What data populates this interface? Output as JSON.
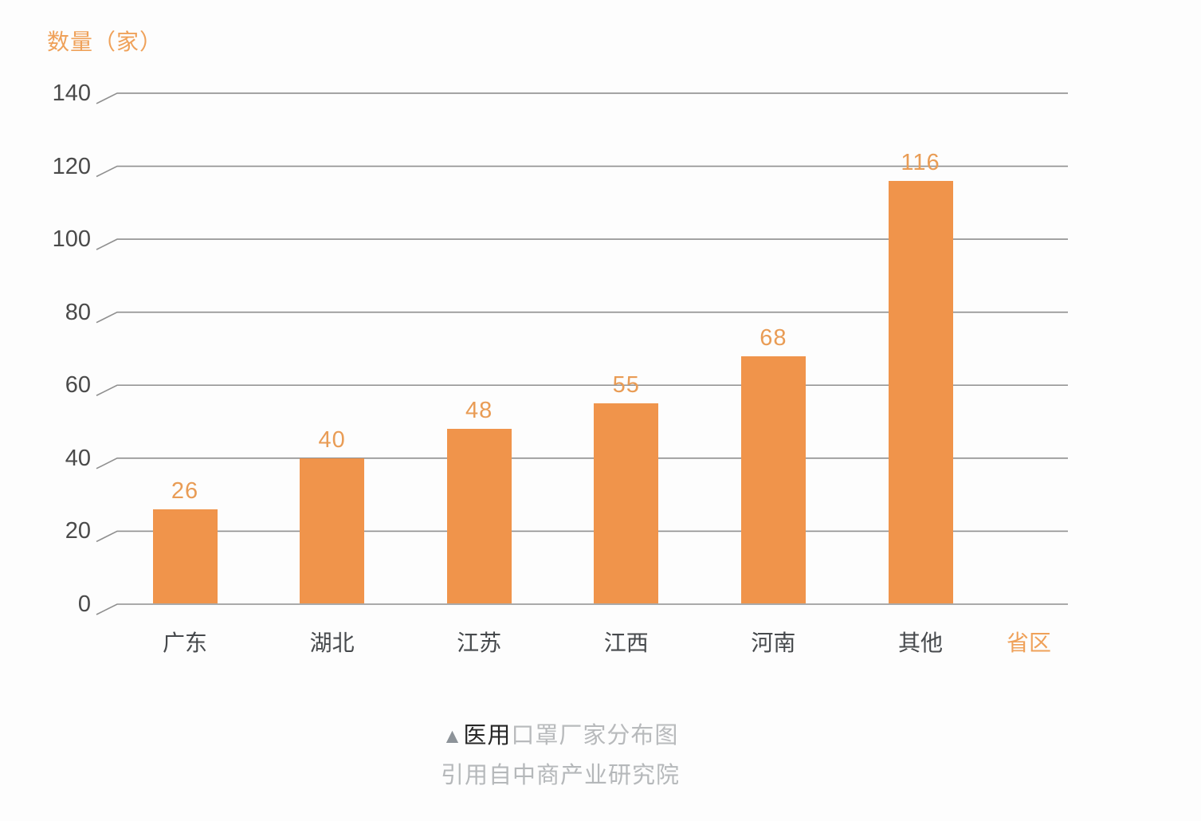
{
  "chart": {
    "y_axis_title": "数量（家）",
    "x_axis_title": "省区"
  },
  "chart_data": {
    "type": "bar",
    "title": "医用口罩厂家分布图",
    "categories": [
      "广东",
      "湖北",
      "江苏",
      "江西",
      "河南",
      "其他"
    ],
    "values": [
      26,
      40,
      48,
      55,
      68,
      116
    ],
    "xlabel": "省区",
    "ylabel": "数量（家）",
    "ylim": [
      0,
      140
    ],
    "yticks": [
      0,
      20,
      40,
      60,
      80,
      100,
      120,
      140
    ],
    "grid": "horizontal",
    "legend": "none",
    "bar_color": "#F0944B",
    "value_label_color": "#E99C55",
    "axis_title_color": "#EFA159",
    "gridline_color": "#8f8f8f",
    "tick_text_color": "#4a4a4a",
    "source": "引用自中商产业研究院"
  },
  "caption": {
    "marker": "▲",
    "title_dark": "医用",
    "title_light": "口罩厂家分布图",
    "source": "引用自中商产业研究院"
  }
}
